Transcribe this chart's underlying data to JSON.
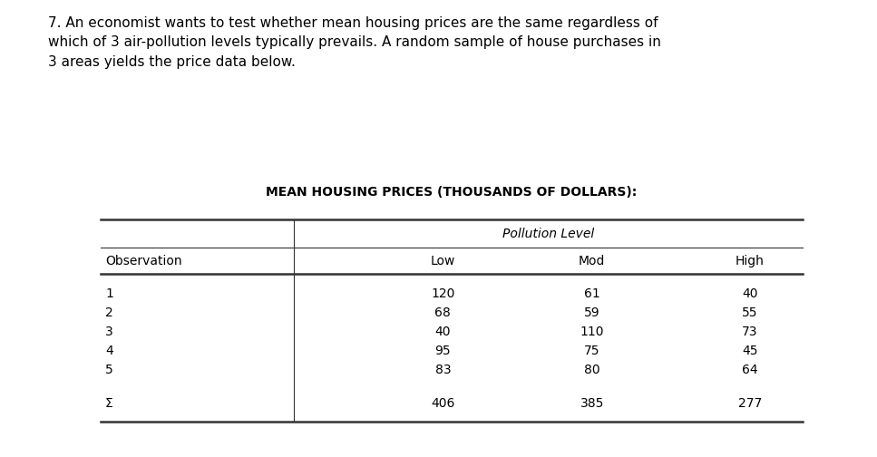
{
  "title_question": "7. An economist wants to test whether mean housing prices are the same regardless of\nwhich of 3 air-pollution levels typically prevails. A random sample of house purchases in\n3 areas yields the price data below.",
  "table_title": "MEAN HOUSING PRICES (THOUSANDS OF DOLLARS):",
  "pollution_level_label": "Pollution Level",
  "col_headers": [
    "Observation",
    "Low",
    "Mod",
    "High"
  ],
  "rows": [
    [
      "1",
      "120",
      "61",
      "40"
    ],
    [
      "2",
      "68",
      "59",
      "55"
    ],
    [
      "3",
      "40",
      "110",
      "73"
    ],
    [
      "4",
      "95",
      "75",
      "45"
    ],
    [
      "5",
      "83",
      "80",
      "64"
    ]
  ],
  "sum_row": [
    "Σ",
    "406",
    "385",
    "277"
  ],
  "bg_color": "#ffffff",
  "text_color": "#000000",
  "question_fontsize": 11.0,
  "table_title_fontsize": 10.0,
  "header_fontsize": 10.0,
  "data_fontsize": 10.0
}
